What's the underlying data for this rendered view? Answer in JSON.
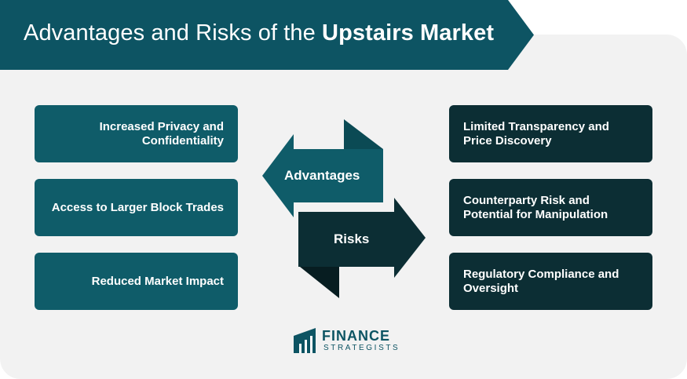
{
  "title": {
    "normal": "Advantages and Risks of the ",
    "bold": "Upstairs Market"
  },
  "advantages": [
    "Increased Privacy and Confidentiality",
    "Access to Larger Block Trades",
    "Reduced Market Impact"
  ],
  "risks": [
    "Limited Transparency and Price Discovery",
    "Counterparty Risk and Potential for Manipulation",
    "Regulatory Compliance and Oversight"
  ],
  "center": {
    "advantages_label": "Advantages",
    "risks_label": "Risks"
  },
  "logo": {
    "line1": "FINANCE",
    "line2": "STRATEGISTS"
  },
  "colors": {
    "banner": "#0d5463",
    "advantage_card": "#0f5c69",
    "risk_card": "#0c2e34",
    "panel": "#f2f2f2"
  }
}
